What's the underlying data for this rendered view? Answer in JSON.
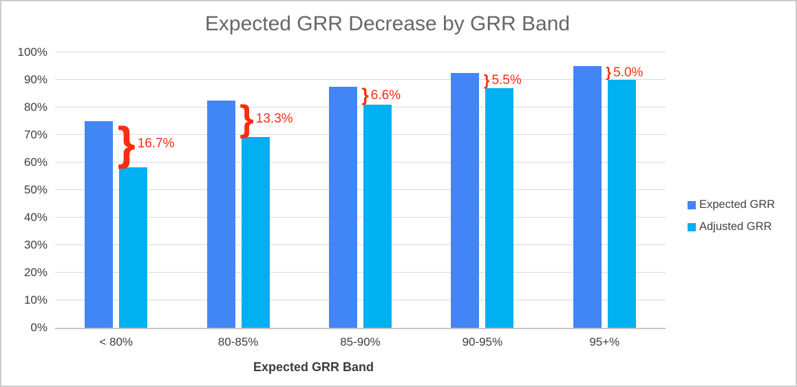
{
  "frame": {
    "background": "#ffffff",
    "border_color": "#cbcbcb"
  },
  "chart_data": {
    "type": "bar",
    "title": "Expected GRR Decrease by GRR Band",
    "xlabel": "Expected GRR Band",
    "ylabel": "",
    "categories": [
      "< 80%",
      "80-85%",
      "85-90%",
      "90-95%",
      "95+%"
    ],
    "series": [
      {
        "name": "Expected GRR",
        "color": "#4285F4",
        "values": [
          75,
          82.5,
          87.5,
          92.5,
          95
        ]
      },
      {
        "name": "Adjusted GRR",
        "color": "#00B0F0",
        "values": [
          58.3,
          69.2,
          80.9,
          87,
          90
        ]
      }
    ],
    "annotations": [
      {
        "category": "< 80%",
        "label": "16.7%"
      },
      {
        "category": "80-85%",
        "label": "13.3%"
      },
      {
        "category": "85-90%",
        "label": "6.6%"
      },
      {
        "category": "90-95%",
        "label": "5.5%"
      },
      {
        "category": "95+%",
        "label": "5.0%"
      }
    ],
    "annotation_color": "#FB2C11",
    "annotation_glyph": "}",
    "ylim": [
      0,
      100
    ],
    "ytick_step": 10,
    "yticks": [
      "0%",
      "10%",
      "20%",
      "30%",
      "40%",
      "50%",
      "60%",
      "70%",
      "80%",
      "90%",
      "100%"
    ],
    "grid": true,
    "legend_position": "right",
    "colors": {
      "title_text": "#666666",
      "axis_text": "#3d3d3d",
      "gridline": "#d9d9d9",
      "axis_line": "#c4c4c4"
    }
  }
}
